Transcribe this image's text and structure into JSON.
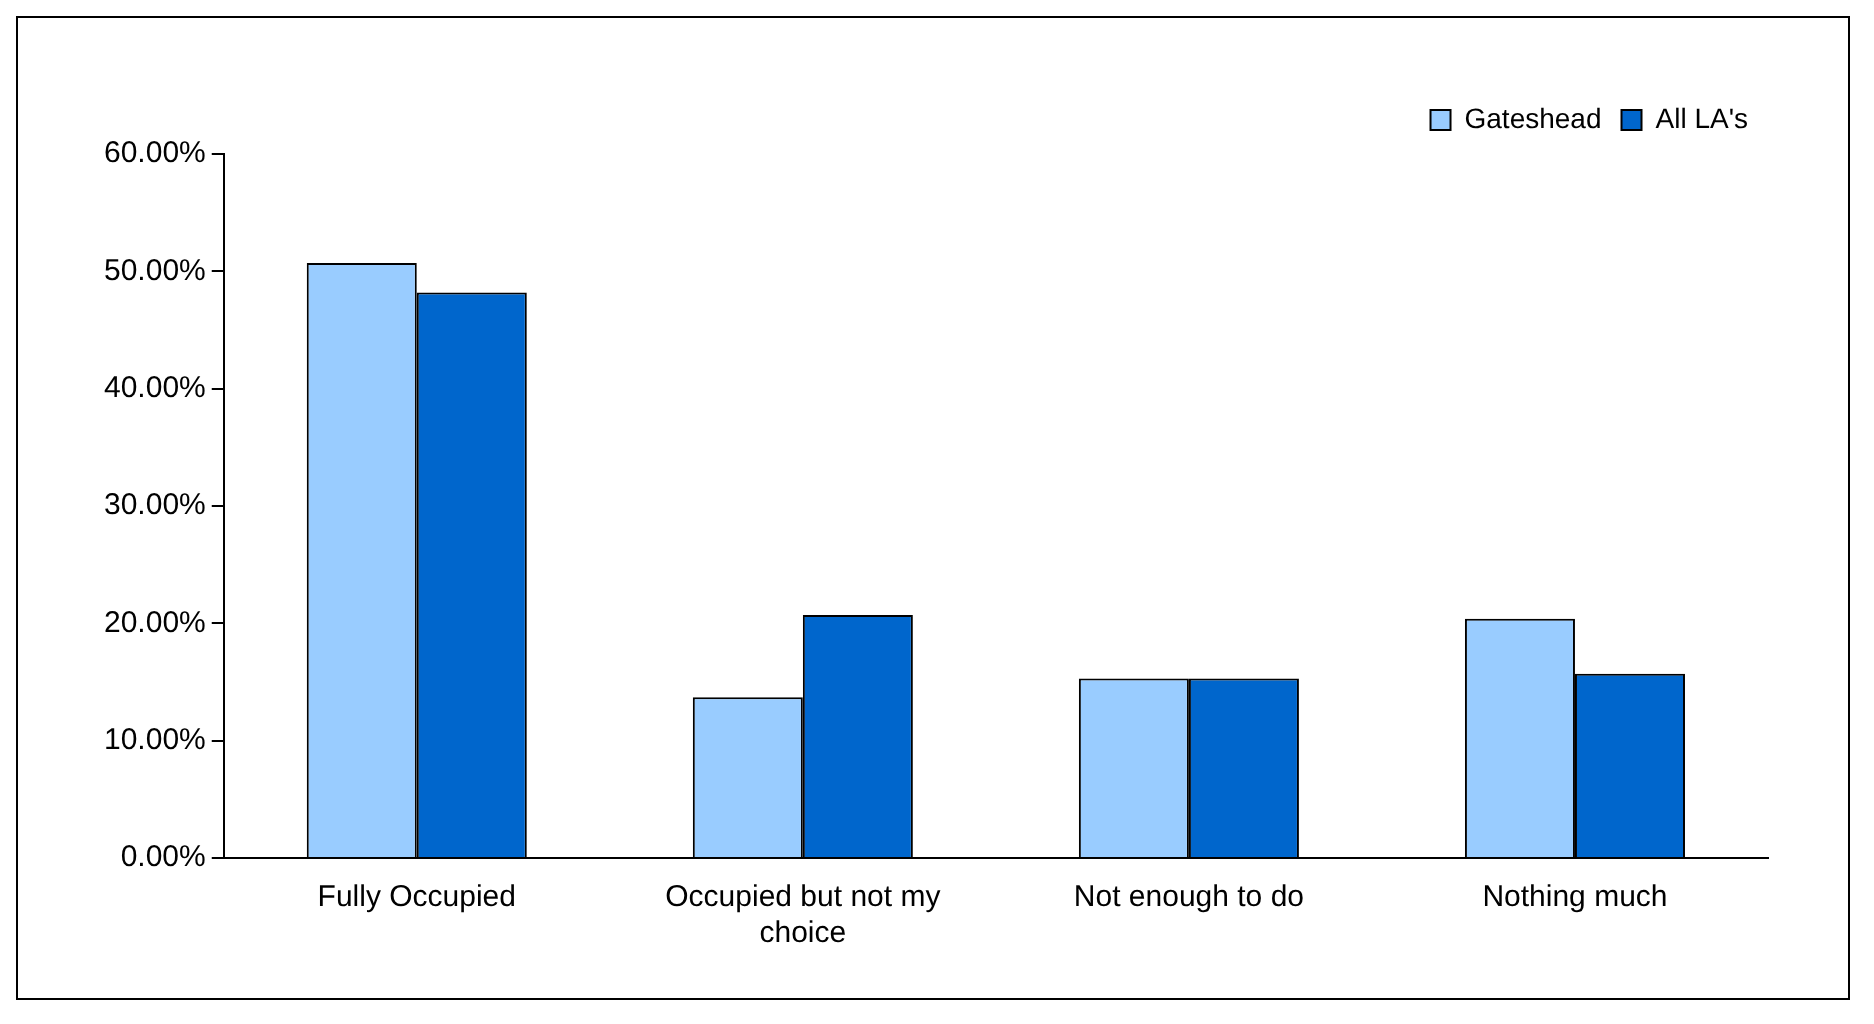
{
  "chart_data": {
    "type": "bar",
    "categories": [
      "Fully Occupied",
      "Occupied but not my choice",
      "Not enough to do",
      "Nothing much"
    ],
    "series": [
      {
        "name": "Gateshead",
        "color": "#99ccff",
        "values": [
          50.7,
          13.7,
          15.3,
          20.4
        ]
      },
      {
        "name": "All LA's",
        "color": "#0066cc",
        "values": [
          48.2,
          20.7,
          15.3,
          15.7
        ]
      }
    ],
    "ylim": [
      0,
      60
    ],
    "yticks": [
      {
        "value": 0,
        "label": "0.00%"
      },
      {
        "value": 10,
        "label": "10.00%"
      },
      {
        "value": 20,
        "label": "20.00%"
      },
      {
        "value": 30,
        "label": "30.00%"
      },
      {
        "value": 40,
        "label": "40.00%"
      },
      {
        "value": 50,
        "label": "50.00%"
      },
      {
        "value": 60,
        "label": "60.00%"
      }
    ],
    "grid": false,
    "legend": "top right"
  }
}
